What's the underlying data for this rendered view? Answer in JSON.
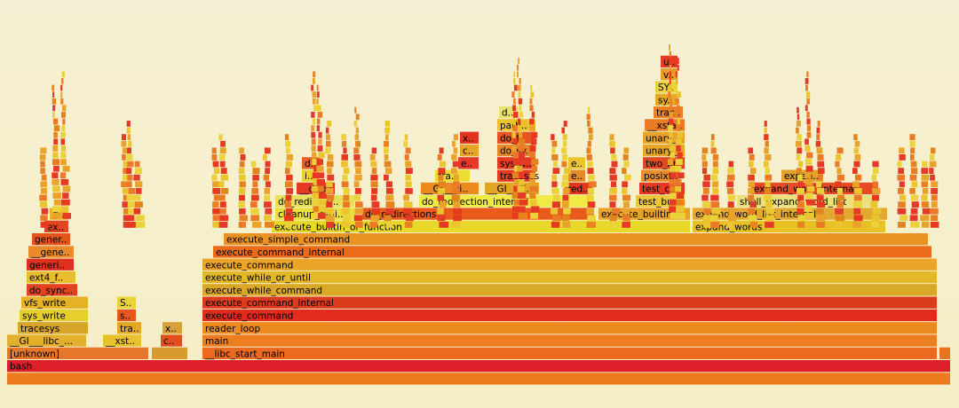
{
  "chart_data": {
    "type": "flamegraph",
    "title": "",
    "frames": [
      {
        "label": "bash",
        "depth": 0,
        "start": 8,
        "end": 1071,
        "color": "#dd1f2a"
      },
      {
        "label": "",
        "depth": -1,
        "start": 8,
        "end": 1071,
        "color": "#ee7a1e"
      },
      {
        "label": "[unknown]",
        "depth": 1,
        "start": 8,
        "end": 168,
        "color": "#e6762a"
      },
      {
        "label": "",
        "depth": 1,
        "start": 171,
        "end": 212,
        "color": "#d89a2c"
      },
      {
        "label": "__libc_start_main",
        "depth": 1,
        "start": 228,
        "end": 1056,
        "color": "#ec6a1f"
      },
      {
        "label": "",
        "depth": 1,
        "start": 1058,
        "end": 1071,
        "color": "#e8731e"
      },
      {
        "label": "__GI___libc_...",
        "depth": 2,
        "start": 8,
        "end": 98,
        "color": "#e2b02c"
      },
      {
        "label": "__xst..",
        "depth": 2,
        "start": 116,
        "end": 160,
        "color": "#e9c12a"
      },
      {
        "label": "c..",
        "depth": 2,
        "start": 181,
        "end": 206,
        "color": "#e0501f"
      },
      {
        "label": "main",
        "depth": 2,
        "start": 228,
        "end": 1056,
        "color": "#ec7d21"
      },
      {
        "label": "tracesys",
        "depth": 3,
        "start": 20,
        "end": 100,
        "color": "#d7a52a"
      },
      {
        "label": "tra..",
        "depth": 3,
        "start": 132,
        "end": 160,
        "color": "#e3a822"
      },
      {
        "label": "x..",
        "depth": 3,
        "start": 183,
        "end": 206,
        "color": "#d8a03a"
      },
      {
        "label": "reader_loop",
        "depth": 3,
        "start": 228,
        "end": 1056,
        "color": "#ec8a1f"
      },
      {
        "label": "sys_write",
        "depth": 4,
        "start": 22,
        "end": 100,
        "color": "#e6cf2c"
      },
      {
        "label": "s..",
        "depth": 4,
        "start": 132,
        "end": 154,
        "color": "#e6561d"
      },
      {
        "label": "execute_command",
        "depth": 4,
        "start": 228,
        "end": 1056,
        "color": "#e02b1d"
      },
      {
        "label": "vfs_write",
        "depth": 5,
        "start": 24,
        "end": 100,
        "color": "#e6b125"
      },
      {
        "label": "S..",
        "depth": 5,
        "start": 132,
        "end": 154,
        "color": "#e9d438"
      },
      {
        "label": "execute_command_internal",
        "depth": 5,
        "start": 228,
        "end": 1056,
        "color": "#dd3b1e"
      },
      {
        "label": "do_sync..",
        "depth": 6,
        "start": 30,
        "end": 88,
        "color": "#e4421f"
      },
      {
        "label": "execute_while_command",
        "depth": 6,
        "start": 228,
        "end": 1056,
        "color": "#d9a826"
      },
      {
        "label": "ext4_f..",
        "depth": 7,
        "start": 30,
        "end": 86,
        "color": "#e8bd2e"
      },
      {
        "label": "execute_while_or_until",
        "depth": 7,
        "start": 228,
        "end": 1056,
        "color": "#e2b828"
      },
      {
        "label": "generi..",
        "depth": 8,
        "start": 30,
        "end": 84,
        "color": "#e0311f"
      },
      {
        "label": "execute_command",
        "depth": 8,
        "start": 228,
        "end": 1056,
        "color": "#eca428"
      },
      {
        "label": "__gene..",
        "depth": 9,
        "start": 32,
        "end": 84,
        "color": "#ea8a2a"
      },
      {
        "label": "execute_command_internal",
        "depth": 9,
        "start": 240,
        "end": 1050,
        "color": "#ec6b1b"
      },
      {
        "label": "gener..",
        "depth": 10,
        "start": 36,
        "end": 80,
        "color": "#e6521c"
      },
      {
        "label": "execute_simple_command",
        "depth": 10,
        "start": 252,
        "end": 1046,
        "color": "#ea9324"
      },
      {
        "label": "ex..",
        "depth": 11,
        "start": 50,
        "end": 78,
        "color": "#e2451f"
      },
      {
        "label": "execute_builtin_or_function",
        "depth": 11,
        "start": 306,
        "end": 778,
        "color": "#e8d82a"
      },
      {
        "label": "expand_words",
        "depth": 11,
        "start": 780,
        "end": 998,
        "color": "#e8c225"
      },
      {
        "label": "g..",
        "depth": 12,
        "start": 56,
        "end": 78,
        "color": "#e8b124"
      },
      {
        "label": "cleanup_redi..",
        "depth": 12,
        "start": 310,
        "end": 402,
        "color": "#e9e03b"
      },
      {
        "label": "do_redirections",
        "depth": 12,
        "start": 408,
        "end": 670,
        "color": "#ea5a1b"
      },
      {
        "label": "execute_builtin",
        "depth": 12,
        "start": 674,
        "end": 778,
        "color": "#e8a22a"
      },
      {
        "label": "expand_word_list_internal",
        "depth": 12,
        "start": 780,
        "end": 1000,
        "color": "#e2a830"
      },
      {
        "label": "do_redirecti..",
        "depth": 13,
        "start": 310,
        "end": 400,
        "color": "#e8e05a"
      },
      {
        "label": "do_redirection_internal",
        "depth": 13,
        "start": 472,
        "end": 670,
        "color": "#efea44"
      },
      {
        "label": "test_bu..",
        "depth": 13,
        "start": 716,
        "end": 772,
        "color": "#ebc737"
      },
      {
        "label": "shell_expand_word_list",
        "depth": 13,
        "start": 830,
        "end": 990,
        "color": "#ebe07a"
      },
      {
        "label": "__dup2",
        "depth": 14,
        "start": 334,
        "end": 378,
        "color": "#e43a24"
      },
      {
        "label": "__GI___li..",
        "depth": 14,
        "start": 474,
        "end": 540,
        "color": "#ea8a1f"
      },
      {
        "label": "__GI___li..",
        "depth": 14,
        "start": 546,
        "end": 608,
        "color": "#e3a524"
      },
      {
        "label": "red..",
        "depth": 14,
        "start": 636,
        "end": 668,
        "color": "#e2361f"
      },
      {
        "label": "test_co..",
        "depth": 14,
        "start": 720,
        "end": 772,
        "color": "#e43a21"
      },
      {
        "label": "expand_word_internal",
        "depth": 14,
        "start": 846,
        "end": 990,
        "color": "#e64b24"
      },
      {
        "label": "i..",
        "depth": 15,
        "start": 340,
        "end": 360,
        "color": "#ead12c"
      },
      {
        "label": "tra..",
        "depth": 15,
        "start": 490,
        "end": 530,
        "color": "#ecdc34"
      },
      {
        "label": "tracesys",
        "depth": 15,
        "start": 560,
        "end": 604,
        "color": "#e83a20"
      },
      {
        "label": "e..",
        "depth": 15,
        "start": 640,
        "end": 660,
        "color": "#e48a26"
      },
      {
        "label": "posixt..",
        "depth": 15,
        "start": 722,
        "end": 766,
        "color": "#ec8d2a"
      },
      {
        "label": "expan..",
        "depth": 15,
        "start": 880,
        "end": 928,
        "color": "#e4a228"
      },
      {
        "label": "d..",
        "depth": 16,
        "start": 340,
        "end": 362,
        "color": "#e36026"
      },
      {
        "label": "e..",
        "depth": 16,
        "start": 516,
        "end": 540,
        "color": "#e43a28"
      },
      {
        "label": "sys_d..",
        "depth": 16,
        "start": 560,
        "end": 604,
        "color": "#e63a1f"
      },
      {
        "label": "e..",
        "depth": 16,
        "start": 640,
        "end": 660,
        "color": "#ebc52f"
      },
      {
        "label": "two_ar..",
        "depth": 16,
        "start": 724,
        "end": 772,
        "color": "#e14921"
      },
      {
        "label": "c..",
        "depth": 17,
        "start": 518,
        "end": 540,
        "color": "#e7a42a"
      },
      {
        "label": "do_sy..",
        "depth": 17,
        "start": 560,
        "end": 604,
        "color": "#e58a2c"
      },
      {
        "label": "unary_..",
        "depth": 17,
        "start": 724,
        "end": 772,
        "color": "#e6a628"
      },
      {
        "label": "x..",
        "depth": 18,
        "start": 518,
        "end": 540,
        "color": "#e33420"
      },
      {
        "label": "do_f..",
        "depth": 18,
        "start": 560,
        "end": 604,
        "color": "#e85423"
      },
      {
        "label": "unary_..",
        "depth": 18,
        "start": 724,
        "end": 772,
        "color": "#e9a22a"
      },
      {
        "label": "path..",
        "depth": 19,
        "start": 560,
        "end": 604,
        "color": "#e9c22e"
      },
      {
        "label": "__xsta..",
        "depth": 19,
        "start": 726,
        "end": 772,
        "color": "#ea7a26"
      },
      {
        "label": "d..",
        "depth": 20,
        "start": 562,
        "end": 584,
        "color": "#e9e26a"
      },
      {
        "label": "trac..",
        "depth": 20,
        "start": 736,
        "end": 770,
        "color": "#ea7f24"
      },
      {
        "label": "sy..",
        "depth": 21,
        "start": 738,
        "end": 764,
        "color": "#e7a72a"
      },
      {
        "label": "SY..",
        "depth": 22,
        "start": 738,
        "end": 764,
        "color": "#ecd23a"
      },
      {
        "label": "v..",
        "depth": 23,
        "start": 744,
        "end": 764,
        "color": "#ea9b28"
      },
      {
        "label": "u..",
        "depth": 24,
        "start": 744,
        "end": 764,
        "color": "#e63a22"
      }
    ]
  }
}
